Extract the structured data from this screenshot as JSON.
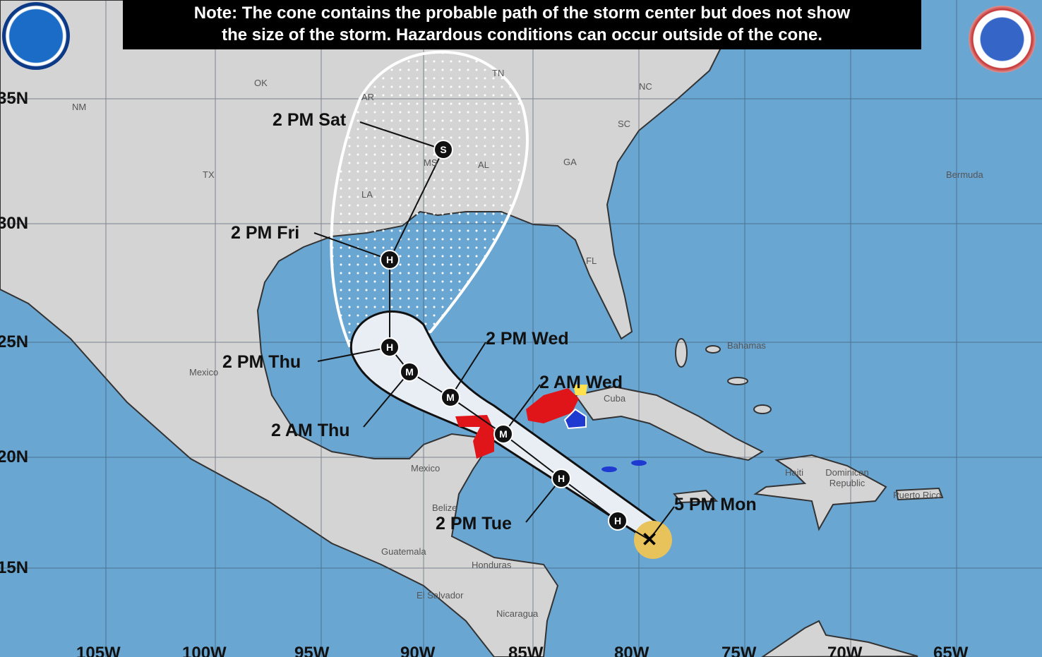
{
  "note": {
    "line1": "Note: The cone contains the probable path of the storm center but does not show",
    "line2": "the size of the storm. Hazardous conditions can occur outside of the cone."
  },
  "logos": {
    "left": "NOAA",
    "right": "NATIONAL WEATHER SERVICE"
  },
  "lat_labels": [
    "35N",
    "30N",
    "25N",
    "20N",
    "15N"
  ],
  "lon_labels": [
    "105W",
    "100W",
    "95W",
    "90W",
    "85W",
    "80W",
    "75W",
    "70W",
    "65W"
  ],
  "places": [
    "OK",
    "NM",
    "AR",
    "TN",
    "NC",
    "SC",
    "MS",
    "AL",
    "GA",
    "TX",
    "LA",
    "FL",
    "Bermuda",
    "Mexico",
    "Bahamas",
    "Cuba",
    "Mexico",
    "Haiti",
    "Dominican Republic",
    "Puerto Rico",
    "Guatemala",
    "Honduras",
    "El Salvador",
    "Nicaragua",
    "Belize"
  ],
  "forecast_points": [
    {
      "label": "5 PM Mon",
      "symbol": "X"
    },
    {
      "label": "",
      "symbol": "H"
    },
    {
      "label": "2 PM Tue",
      "symbol": "H"
    },
    {
      "label": "2 AM Wed",
      "symbol": "M"
    },
    {
      "label": "2 PM Wed",
      "symbol": "M"
    },
    {
      "label": "2 AM Thu",
      "symbol": "M"
    },
    {
      "label": "2 PM Thu",
      "symbol": "H"
    },
    {
      "label": "2 PM Fri",
      "symbol": "H"
    },
    {
      "label": "2 PM Sat",
      "symbol": "S"
    }
  ],
  "colors": {
    "ocean": "#6aa6d2",
    "land": "#d4d4d4",
    "warning": "#e0151a",
    "watch": "#f3b8c4",
    "tropical_storm_watch": "#ffe14d",
    "ts_warning": "#1f3ad0",
    "current_wind": "#e8c25a"
  }
}
